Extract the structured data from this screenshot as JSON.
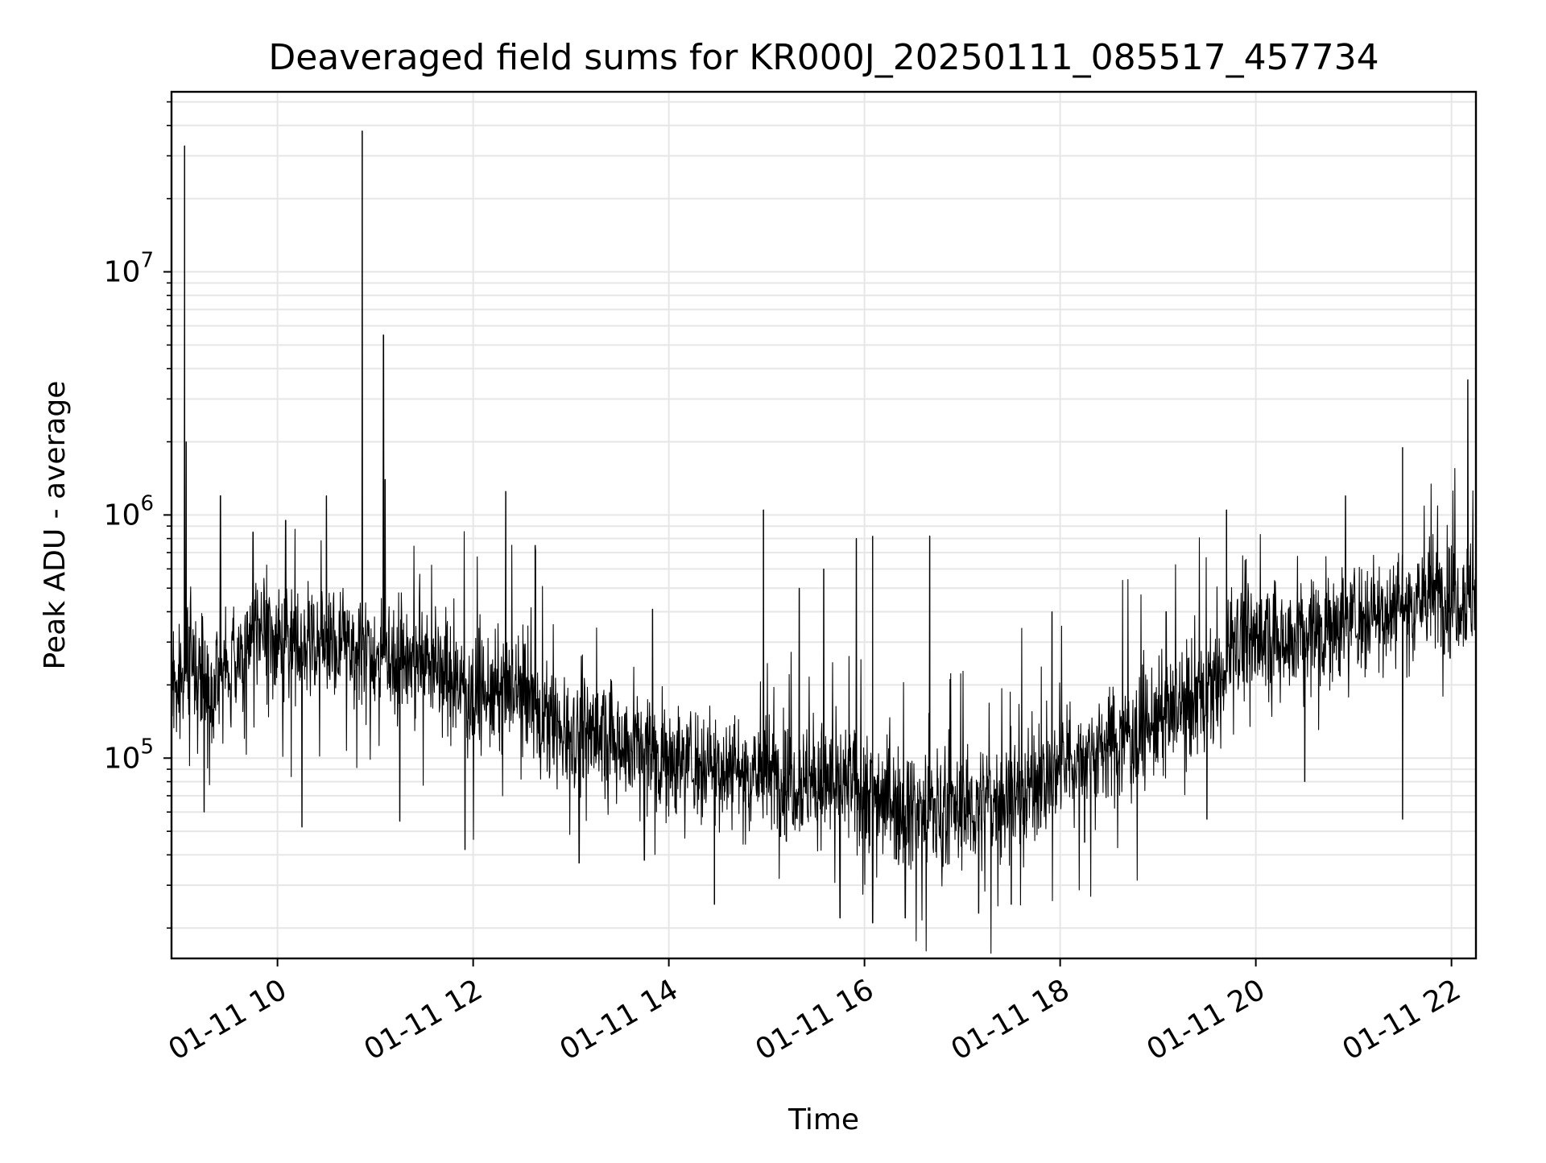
{
  "chart_data": {
    "type": "line",
    "title": "Deaveraged field sums for KR000J_20250111_085517_457734",
    "xlabel": "Time",
    "ylabel": "Peak ADU - average",
    "x_range": [
      "2025-01-11 08:55",
      "2025-01-11 22:15"
    ],
    "y_range": [
      15000,
      55000000
    ],
    "y_scale": "log",
    "grid": true,
    "line_color": "#000000",
    "grid_color": "#e6e6e6",
    "x_ticks": [
      {
        "value": "2025-01-11 10:00",
        "label": "01-11 10"
      },
      {
        "value": "2025-01-11 12:00",
        "label": "01-11 12"
      },
      {
        "value": "2025-01-11 14:00",
        "label": "01-11 14"
      },
      {
        "value": "2025-01-11 16:00",
        "label": "01-11 16"
      },
      {
        "value": "2025-01-11 18:00",
        "label": "01-11 18"
      },
      {
        "value": "2025-01-11 20:00",
        "label": "01-11 20"
      },
      {
        "value": "2025-01-11 22:00",
        "label": "01-11 22"
      }
    ],
    "y_ticks": [
      {
        "value": 100000,
        "base": "10",
        "exp": "5"
      },
      {
        "value": 1000000,
        "base": "10",
        "exp": "6"
      },
      {
        "value": 10000000,
        "base": "10",
        "exp": "7"
      }
    ],
    "series": [
      {
        "baseline": [
          [
            "2025-01-11 08:55",
            190000
          ],
          [
            "2025-01-11 09:05",
            230000
          ],
          [
            "2025-01-11 09:20",
            200000
          ],
          [
            "2025-01-11 09:35",
            260000
          ],
          [
            "2025-01-11 09:50",
            320000
          ],
          [
            "2025-01-11 10:10",
            300000
          ],
          [
            "2025-01-11 10:30",
            300000
          ],
          [
            "2025-01-11 10:50",
            280000
          ],
          [
            "2025-01-11 11:10",
            260000
          ],
          [
            "2025-01-11 11:30",
            260000
          ],
          [
            "2025-01-11 11:50",
            200000
          ],
          [
            "2025-01-11 12:10",
            180000
          ],
          [
            "2025-01-11 12:35",
            190000
          ],
          [
            "2025-01-11 12:40",
            140000
          ],
          [
            "2025-01-11 13:00",
            130000
          ],
          [
            "2025-01-11 13:30",
            120000
          ],
          [
            "2025-01-11 14:00",
            100000
          ],
          [
            "2025-01-11 14:30",
            95000
          ],
          [
            "2025-01-11 15:00",
            85000
          ],
          [
            "2025-01-11 15:30",
            80000
          ],
          [
            "2025-01-11 16:00",
            75000
          ],
          [
            "2025-01-11 16:30",
            62000
          ],
          [
            "2025-01-11 17:00",
            60000
          ],
          [
            "2025-01-11 17:30",
            70000
          ],
          [
            "2025-01-11 18:00",
            90000
          ],
          [
            "2025-01-11 18:30",
            115000
          ],
          [
            "2025-01-11 19:00",
            140000
          ],
          [
            "2025-01-11 19:40",
            200000
          ],
          [
            "2025-01-11 19:45",
            340000
          ],
          [
            "2025-01-11 20:00",
            300000
          ],
          [
            "2025-01-11 20:30",
            330000
          ],
          [
            "2025-01-11 21:00",
            380000
          ],
          [
            "2025-01-11 21:30",
            430000
          ],
          [
            "2025-01-11 21:50",
            470000
          ],
          [
            "2025-01-11 22:15",
            470000
          ]
        ],
        "spikes": [
          [
            "2025-01-11 09:03",
            33000000
          ],
          [
            "2025-01-11 09:04",
            2000000
          ],
          [
            "2025-01-11 09:25",
            1200000
          ],
          [
            "2025-01-11 09:45",
            850000
          ],
          [
            "2025-01-11 10:05",
            950000
          ],
          [
            "2025-01-11 10:30",
            1200000
          ],
          [
            "2025-01-11 10:52",
            38000000
          ],
          [
            "2025-01-11 11:05",
            5500000
          ],
          [
            "2025-01-11 11:06",
            1400000
          ],
          [
            "2025-01-11 12:20",
            1250000
          ],
          [
            "2025-01-11 12:38",
            750000
          ],
          [
            "2025-01-11 13:50",
            410000
          ],
          [
            "2025-01-11 14:58",
            1050000
          ],
          [
            "2025-01-11 15:20",
            500000
          ],
          [
            "2025-01-11 15:35",
            600000
          ],
          [
            "2025-01-11 15:55",
            800000
          ],
          [
            "2025-01-11 16:05",
            820000
          ],
          [
            "2025-01-11 16:40",
            820000
          ],
          [
            "2025-01-11 17:55",
            400000
          ],
          [
            "2025-01-11 19:05",
            400000
          ],
          [
            "2025-01-11 19:42",
            1050000
          ],
          [
            "2025-01-11 20:55",
            1200000
          ],
          [
            "2025-01-11 21:30",
            1900000
          ],
          [
            "2025-01-11 22:10",
            3600000
          ]
        ],
        "dips": [
          [
            "2025-01-11 09:15",
            60000
          ],
          [
            "2025-01-11 10:15",
            52000
          ],
          [
            "2025-01-11 11:15",
            55000
          ],
          [
            "2025-01-11 11:55",
            42000
          ],
          [
            "2025-01-11 13:05",
            37000
          ],
          [
            "2025-01-11 13:45",
            38000
          ],
          [
            "2025-01-11 14:28",
            25000
          ],
          [
            "2025-01-11 15:45",
            22000
          ],
          [
            "2025-01-11 16:05",
            21000
          ],
          [
            "2025-01-11 16:25",
            22000
          ],
          [
            "2025-01-11 17:10",
            23000
          ],
          [
            "2025-01-11 17:30",
            25000
          ],
          [
            "2025-01-11 18:15",
            45000
          ],
          [
            "2025-01-11 19:30",
            56000
          ],
          [
            "2025-01-11 20:30",
            80000
          ],
          [
            "2025-01-11 21:30",
            56000
          ]
        ]
      }
    ]
  }
}
